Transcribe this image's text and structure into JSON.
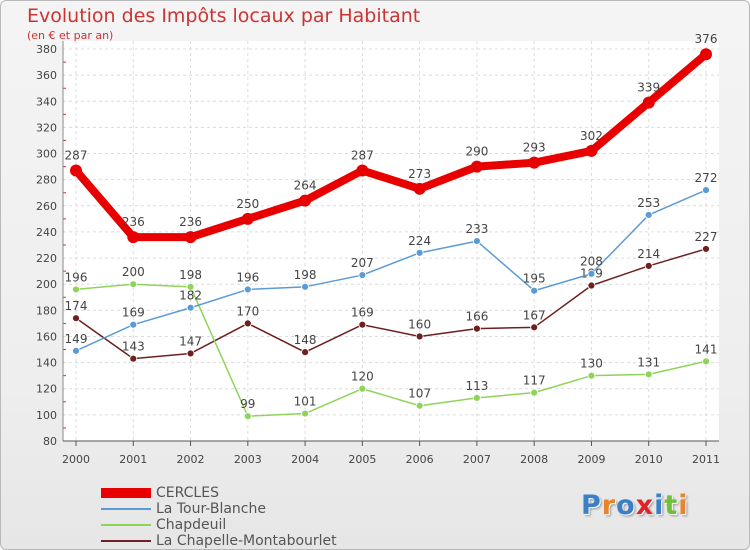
{
  "header": {
    "title": "Evolution des Impôts locaux par Habitant",
    "subtitle": "(en € et par an)"
  },
  "logo": {
    "text": "Proxiti",
    "letters": [
      {
        "ch": "P",
        "color": "#3a7fc8"
      },
      {
        "ch": "r",
        "color": "#e8842a"
      },
      {
        "ch": "o",
        "color": "#3a7fc8"
      },
      {
        "ch": "x",
        "color": "#e02424"
      },
      {
        "ch": "i",
        "color": "#3a7fc8"
      },
      {
        "ch": "t",
        "color": "#6fbf3a"
      },
      {
        "ch": "i",
        "color": "#e8842a"
      }
    ]
  },
  "chart_data": {
    "type": "line",
    "title": "Evolution des Impôts locaux par Habitant",
    "subtitle": "(en € et par an)",
    "x": [
      "2000",
      "2001",
      "2002",
      "2003",
      "2004",
      "2005",
      "2006",
      "2007",
      "2008",
      "2009",
      "2010",
      "2011"
    ],
    "ylim": [
      80,
      380
    ],
    "yticks": [
      80,
      100,
      120,
      140,
      160,
      180,
      200,
      220,
      240,
      260,
      280,
      300,
      320,
      340,
      360,
      380
    ],
    "grid": true,
    "legend": "bottom-left",
    "series": [
      {
        "name": "CERCLES",
        "color": "#e80000",
        "values": [
          287,
          236,
          236,
          250,
          264,
          287,
          273,
          290,
          293,
          302,
          339,
          376
        ]
      },
      {
        "name": "La Tour-Blanche",
        "color": "#5b9bd5",
        "values": [
          149,
          169,
          182,
          196,
          198,
          207,
          224,
          233,
          195,
          208,
          253,
          272
        ]
      },
      {
        "name": "Chapdeuil",
        "color": "#8fd45a",
        "values": [
          196,
          200,
          198,
          99,
          101,
          120,
          107,
          113,
          117,
          130,
          131,
          141
        ]
      },
      {
        "name": "La Chapelle-Montabourlet",
        "color": "#6e1f1f",
        "values": [
          174,
          143,
          147,
          170,
          148,
          169,
          160,
          166,
          167,
          199,
          214,
          227
        ]
      }
    ]
  }
}
